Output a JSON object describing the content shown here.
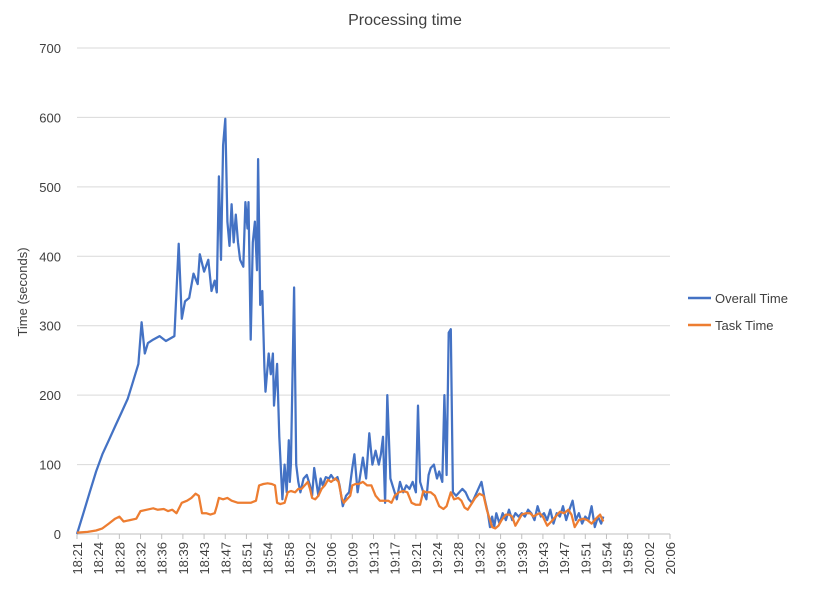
{
  "chart_data": {
    "type": "line",
    "title": "Processing time",
    "ylabel": "Time (seconds)",
    "xlabel": "",
    "ylim": [
      0,
      700
    ],
    "y_ticks": [
      0,
      100,
      200,
      300,
      400,
      500,
      600,
      700
    ],
    "x_tick_labels": [
      "18:21",
      "18:24",
      "18:28",
      "18:32",
      "18:36",
      "18:39",
      "18:43",
      "18:47",
      "18:51",
      "18:54",
      "18:58",
      "19:02",
      "19:06",
      "19:09",
      "19:13",
      "19:17",
      "19:21",
      "19:24",
      "19:28",
      "19:32",
      "19:36",
      "19:39",
      "19:43",
      "19:47",
      "19:51",
      "19:54",
      "19:58",
      "20:02",
      "20:06"
    ],
    "grid": "horizontal",
    "legend_position": "right",
    "colors": {
      "overall": "#4472c4",
      "task": "#ed7d31",
      "grid": "#d9d9d9",
      "axis": "#bfbfbf",
      "text": "#404040"
    },
    "series": [
      {
        "name": "Overall Time",
        "color": "#4472c4",
        "points": [
          [
            0,
            0
          ],
          [
            0.3,
            30
          ],
          [
            0.6,
            60
          ],
          [
            0.9,
            90
          ],
          [
            1.2,
            115
          ],
          [
            1.5,
            135
          ],
          [
            1.8,
            155
          ],
          [
            2.1,
            175
          ],
          [
            2.4,
            195
          ],
          [
            2.6,
            215
          ],
          [
            2.9,
            245
          ],
          [
            3.05,
            305
          ],
          [
            3.2,
            260
          ],
          [
            3.35,
            275
          ],
          [
            3.6,
            280
          ],
          [
            3.9,
            285
          ],
          [
            4.2,
            278
          ],
          [
            4.6,
            285
          ],
          [
            4.8,
            418
          ],
          [
            4.95,
            310
          ],
          [
            5.1,
            335
          ],
          [
            5.3,
            340
          ],
          [
            5.5,
            375
          ],
          [
            5.7,
            360
          ],
          [
            5.8,
            403
          ],
          [
            6.0,
            378
          ],
          [
            6.2,
            395
          ],
          [
            6.35,
            350
          ],
          [
            6.5,
            365
          ],
          [
            6.6,
            348
          ],
          [
            6.7,
            515
          ],
          [
            6.8,
            395
          ],
          [
            6.9,
            560
          ],
          [
            7.0,
            598
          ],
          [
            7.1,
            450
          ],
          [
            7.2,
            415
          ],
          [
            7.3,
            475
          ],
          [
            7.4,
            420
          ],
          [
            7.5,
            460
          ],
          [
            7.6,
            420
          ],
          [
            7.7,
            395
          ],
          [
            7.85,
            385
          ],
          [
            7.95,
            478
          ],
          [
            8.05,
            440
          ],
          [
            8.1,
            478
          ],
          [
            8.2,
            280
          ],
          [
            8.3,
            420
          ],
          [
            8.4,
            450
          ],
          [
            8.5,
            380
          ],
          [
            8.55,
            540
          ],
          [
            8.65,
            330
          ],
          [
            8.75,
            350
          ],
          [
            8.85,
            240
          ],
          [
            8.9,
            205
          ],
          [
            9.05,
            260
          ],
          [
            9.15,
            230
          ],
          [
            9.25,
            260
          ],
          [
            9.3,
            185
          ],
          [
            9.45,
            245
          ],
          [
            9.55,
            140
          ],
          [
            9.7,
            50
          ],
          [
            9.8,
            100
          ],
          [
            9.9,
            60
          ],
          [
            10.0,
            135
          ],
          [
            10.05,
            75
          ],
          [
            10.1,
            100
          ],
          [
            10.25,
            355
          ],
          [
            10.35,
            100
          ],
          [
            10.45,
            75
          ],
          [
            10.55,
            60
          ],
          [
            10.7,
            80
          ],
          [
            10.85,
            85
          ],
          [
            11.0,
            70
          ],
          [
            11.1,
            55
          ],
          [
            11.2,
            95
          ],
          [
            11.3,
            75
          ],
          [
            11.4,
            55
          ],
          [
            11.5,
            80
          ],
          [
            11.6,
            70
          ],
          [
            11.75,
            82
          ],
          [
            11.9,
            80
          ],
          [
            12.0,
            85
          ],
          [
            12.15,
            78
          ],
          [
            12.3,
            82
          ],
          [
            12.4,
            70
          ],
          [
            12.55,
            40
          ],
          [
            12.7,
            55
          ],
          [
            12.85,
            60
          ],
          [
            13.0,
            95
          ],
          [
            13.1,
            115
          ],
          [
            13.25,
            60
          ],
          [
            13.4,
            90
          ],
          [
            13.5,
            110
          ],
          [
            13.65,
            80
          ],
          [
            13.8,
            145
          ],
          [
            13.95,
            100
          ],
          [
            14.1,
            120
          ],
          [
            14.25,
            100
          ],
          [
            14.35,
            115
          ],
          [
            14.45,
            140
          ],
          [
            14.55,
            45
          ],
          [
            14.65,
            200
          ],
          [
            14.8,
            80
          ],
          [
            14.95,
            65
          ],
          [
            15.1,
            50
          ],
          [
            15.25,
            75
          ],
          [
            15.4,
            60
          ],
          [
            15.55,
            70
          ],
          [
            15.7,
            65
          ],
          [
            15.85,
            75
          ],
          [
            16.0,
            60
          ],
          [
            16.1,
            185
          ],
          [
            16.2,
            75
          ],
          [
            16.35,
            60
          ],
          [
            16.5,
            50
          ],
          [
            16.6,
            85
          ],
          [
            16.7,
            95
          ],
          [
            16.85,
            100
          ],
          [
            17.0,
            80
          ],
          [
            17.1,
            90
          ],
          [
            17.25,
            75
          ],
          [
            17.35,
            200
          ],
          [
            17.45,
            85
          ],
          [
            17.55,
            290
          ],
          [
            17.65,
            295
          ],
          [
            17.75,
            60
          ],
          [
            17.9,
            55
          ],
          [
            18.05,
            60
          ],
          [
            18.2,
            65
          ],
          [
            18.35,
            60
          ],
          [
            18.5,
            50
          ],
          [
            18.65,
            45
          ],
          [
            18.8,
            55
          ],
          [
            18.95,
            65
          ],
          [
            19.1,
            75
          ],
          [
            19.25,
            50
          ],
          [
            19.4,
            30
          ],
          [
            19.5,
            10
          ],
          [
            19.6,
            25
          ],
          [
            19.7,
            10
          ],
          [
            19.8,
            30
          ],
          [
            19.95,
            15
          ],
          [
            20.1,
            30
          ],
          [
            20.25,
            20
          ],
          [
            20.4,
            35
          ],
          [
            20.55,
            20
          ],
          [
            20.7,
            30
          ],
          [
            20.85,
            25
          ],
          [
            21.0,
            30
          ],
          [
            21.15,
            25
          ],
          [
            21.3,
            35
          ],
          [
            21.45,
            30
          ],
          [
            21.6,
            20
          ],
          [
            21.75,
            40
          ],
          [
            21.9,
            25
          ],
          [
            22.05,
            30
          ],
          [
            22.2,
            20
          ],
          [
            22.35,
            35
          ],
          [
            22.5,
            15
          ],
          [
            22.65,
            30
          ],
          [
            22.8,
            25
          ],
          [
            22.95,
            40
          ],
          [
            23.1,
            20
          ],
          [
            23.25,
            35
          ],
          [
            23.4,
            48
          ],
          [
            23.55,
            20
          ],
          [
            23.7,
            30
          ],
          [
            23.85,
            15
          ],
          [
            24.0,
            25
          ],
          [
            24.15,
            20
          ],
          [
            24.3,
            40
          ],
          [
            24.45,
            10
          ],
          [
            24.6,
            25
          ],
          [
            24.75,
            15
          ],
          [
            24.85,
            25
          ]
        ]
      },
      {
        "name": "Task Time",
        "color": "#ed7d31",
        "points": [
          [
            0,
            2
          ],
          [
            0.5,
            3
          ],
          [
            0.9,
            5
          ],
          [
            1.2,
            8
          ],
          [
            1.5,
            15
          ],
          [
            1.8,
            22
          ],
          [
            2.0,
            25
          ],
          [
            2.2,
            18
          ],
          [
            2.5,
            20
          ],
          [
            2.8,
            22
          ],
          [
            3.0,
            33
          ],
          [
            3.3,
            35
          ],
          [
            3.6,
            37
          ],
          [
            3.8,
            35
          ],
          [
            4.1,
            36
          ],
          [
            4.3,
            33
          ],
          [
            4.5,
            35
          ],
          [
            4.7,
            30
          ],
          [
            4.95,
            45
          ],
          [
            5.2,
            48
          ],
          [
            5.4,
            52
          ],
          [
            5.6,
            58
          ],
          [
            5.75,
            55
          ],
          [
            5.9,
            30
          ],
          [
            6.1,
            30
          ],
          [
            6.3,
            28
          ],
          [
            6.5,
            30
          ],
          [
            6.6,
            40
          ],
          [
            6.7,
            52
          ],
          [
            6.9,
            50
          ],
          [
            7.1,
            52
          ],
          [
            7.3,
            48
          ],
          [
            7.6,
            45
          ],
          [
            7.9,
            45
          ],
          [
            8.2,
            45
          ],
          [
            8.45,
            48
          ],
          [
            8.6,
            70
          ],
          [
            8.8,
            72
          ],
          [
            9.0,
            73
          ],
          [
            9.2,
            72
          ],
          [
            9.35,
            70
          ],
          [
            9.45,
            45
          ],
          [
            9.6,
            43
          ],
          [
            9.8,
            45
          ],
          [
            9.95,
            60
          ],
          [
            10.1,
            62
          ],
          [
            10.3,
            60
          ],
          [
            10.45,
            65
          ],
          [
            10.6,
            65
          ],
          [
            10.75,
            70
          ],
          [
            10.9,
            75
          ],
          [
            11.0,
            65
          ],
          [
            11.1,
            52
          ],
          [
            11.25,
            50
          ],
          [
            11.4,
            55
          ],
          [
            11.55,
            65
          ],
          [
            11.7,
            70
          ],
          [
            11.85,
            78
          ],
          [
            12.0,
            75
          ],
          [
            12.2,
            80
          ],
          [
            12.35,
            75
          ],
          [
            12.5,
            52
          ],
          [
            12.6,
            45
          ],
          [
            12.75,
            50
          ],
          [
            12.9,
            55
          ],
          [
            13.0,
            70
          ],
          [
            13.15,
            72
          ],
          [
            13.3,
            72
          ],
          [
            13.5,
            75
          ],
          [
            13.7,
            70
          ],
          [
            13.9,
            70
          ],
          [
            14.1,
            55
          ],
          [
            14.3,
            48
          ],
          [
            14.5,
            48
          ],
          [
            14.7,
            48
          ],
          [
            14.85,
            45
          ],
          [
            15.0,
            55
          ],
          [
            15.2,
            60
          ],
          [
            15.4,
            62
          ],
          [
            15.6,
            60
          ],
          [
            15.8,
            45
          ],
          [
            16.0,
            42
          ],
          [
            16.2,
            42
          ],
          [
            16.35,
            62
          ],
          [
            16.5,
            60
          ],
          [
            16.7,
            60
          ],
          [
            16.9,
            55
          ],
          [
            17.1,
            40
          ],
          [
            17.3,
            36
          ],
          [
            17.45,
            40
          ],
          [
            17.65,
            60
          ],
          [
            17.8,
            50
          ],
          [
            18.0,
            52
          ],
          [
            18.15,
            48
          ],
          [
            18.3,
            38
          ],
          [
            18.45,
            35
          ],
          [
            18.6,
            42
          ],
          [
            18.8,
            52
          ],
          [
            19.0,
            58
          ],
          [
            19.2,
            55
          ],
          [
            19.35,
            35
          ],
          [
            19.5,
            20
          ],
          [
            19.6,
            10
          ],
          [
            19.75,
            8
          ],
          [
            19.9,
            12
          ],
          [
            20.05,
            20
          ],
          [
            20.25,
            28
          ],
          [
            20.4,
            28
          ],
          [
            20.55,
            25
          ],
          [
            20.7,
            12
          ],
          [
            20.85,
            20
          ],
          [
            21.0,
            28
          ],
          [
            21.2,
            30
          ],
          [
            21.4,
            30
          ],
          [
            21.55,
            25
          ],
          [
            21.7,
            28
          ],
          [
            21.85,
            30
          ],
          [
            22.0,
            25
          ],
          [
            22.2,
            12
          ],
          [
            22.4,
            18
          ],
          [
            22.6,
            25
          ],
          [
            22.8,
            32
          ],
          [
            23.0,
            30
          ],
          [
            23.2,
            35
          ],
          [
            23.35,
            28
          ],
          [
            23.5,
            10
          ],
          [
            23.7,
            20
          ],
          [
            23.9,
            22
          ],
          [
            24.1,
            20
          ],
          [
            24.3,
            15
          ],
          [
            24.5,
            22
          ],
          [
            24.7,
            28
          ],
          [
            24.85,
            18
          ]
        ]
      }
    ]
  }
}
